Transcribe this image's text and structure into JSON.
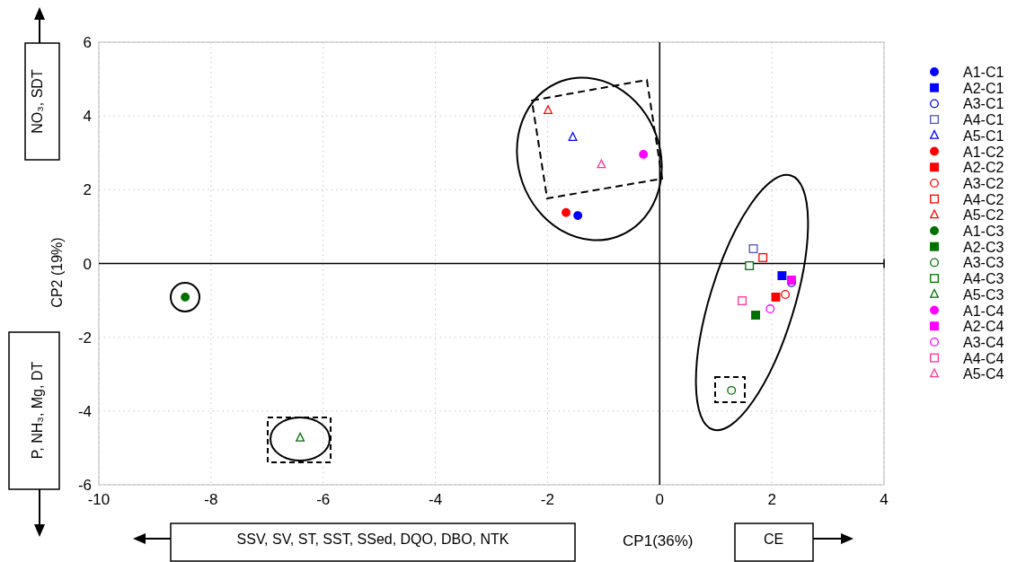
{
  "chart_data": {
    "type": "scatter",
    "xlabel": "CP1(36%)",
    "ylabel": "CP2 (19%)",
    "annotations": [
      "NO₃, SDT",
      "P, NH₃, Mg, DT",
      "SSV, SV, ST, SST, SSed, DQO, DBO, NTK",
      "CE"
    ],
    "xlim": [
      -10,
      4
    ],
    "xticks": [
      -10,
      -8,
      -6,
      -4,
      -2,
      0,
      2,
      4
    ],
    "ylim": [
      -6,
      6
    ],
    "yticks": [
      -6,
      -4,
      -2,
      0,
      2,
      4,
      6
    ],
    "grid": true,
    "legend": "right",
    "series": [
      {
        "name": "A1-C1",
        "color": "#0000ff",
        "marker": "circle",
        "x": [
          -1.46
        ],
        "values": [
          1.3
        ]
      },
      {
        "name": "A2-C1",
        "color": "#0000ff",
        "marker": "square",
        "x": [
          2.18
        ],
        "values": [
          -0.33
        ]
      },
      {
        "name": "A3-C1",
        "color": "#0000ff",
        "marker": "circle-open",
        "x": [
          2.35
        ],
        "values": [
          -0.52
        ]
      },
      {
        "name": "A4-C1",
        "color": "#5050c8",
        "marker": "square-open",
        "x": [
          1.67
        ],
        "values": [
          0.4
        ]
      },
      {
        "name": "A5-C1",
        "color": "#0000ff",
        "marker": "triangle-open",
        "x": [
          -1.55
        ],
        "values": [
          3.42
        ]
      },
      {
        "name": "A1-C2",
        "color": "#ff0000",
        "marker": "circle",
        "x": [
          -1.67
        ],
        "values": [
          1.38
        ]
      },
      {
        "name": "A2-C2",
        "color": "#ff0000",
        "marker": "square",
        "x": [
          2.07
        ],
        "values": [
          -0.91
        ]
      },
      {
        "name": "A3-C2",
        "color": "#ff0000",
        "marker": "circle-open",
        "x": [
          2.24
        ],
        "values": [
          -0.84
        ]
      },
      {
        "name": "A4-C2",
        "color": "#ff0000",
        "marker": "square-open",
        "x": [
          1.84
        ],
        "values": [
          0.16
        ]
      },
      {
        "name": "A5-C2",
        "color": "#ff0000",
        "marker": "triangle-open",
        "x": [
          -1.99
        ],
        "values": [
          4.15
        ]
      },
      {
        "name": "A1-C3",
        "color": "#007000",
        "marker": "circle",
        "x": [
          -8.46
        ],
        "values": [
          -0.91
        ]
      },
      {
        "name": "A2-C3",
        "color": "#007000",
        "marker": "square",
        "x": [
          1.71
        ],
        "values": [
          -1.4
        ]
      },
      {
        "name": "A3-C3",
        "color": "#007000",
        "marker": "circle-open",
        "x": [
          1.28
        ],
        "values": [
          -3.44
        ]
      },
      {
        "name": "A4-C3",
        "color": "#007000",
        "marker": "square-open",
        "x": [
          1.6
        ],
        "values": [
          -0.06
        ]
      },
      {
        "name": "A5-C3",
        "color": "#007000",
        "marker": "triangle-open",
        "x": [
          -6.41
        ],
        "values": [
          -4.73
        ]
      },
      {
        "name": "A1-C4",
        "color": "#ff00ff",
        "marker": "circle",
        "x": [
          -0.29
        ],
        "values": [
          2.96
        ]
      },
      {
        "name": "A2-C4",
        "color": "#ff00ff",
        "marker": "square",
        "x": [
          2.35
        ],
        "values": [
          -0.45
        ]
      },
      {
        "name": "A3-C4",
        "color": "#ff00ff",
        "marker": "circle-open",
        "x": [
          1.97
        ],
        "values": [
          -1.23
        ]
      },
      {
        "name": "A4-C4",
        "color": "#ff3399",
        "marker": "square-open",
        "x": [
          1.47
        ],
        "values": [
          -1.01
        ]
      },
      {
        "name": "A5-C4",
        "color": "#ff3399",
        "marker": "triangle-open",
        "x": [
          -1.04
        ],
        "values": [
          2.68
        ]
      }
    ]
  }
}
